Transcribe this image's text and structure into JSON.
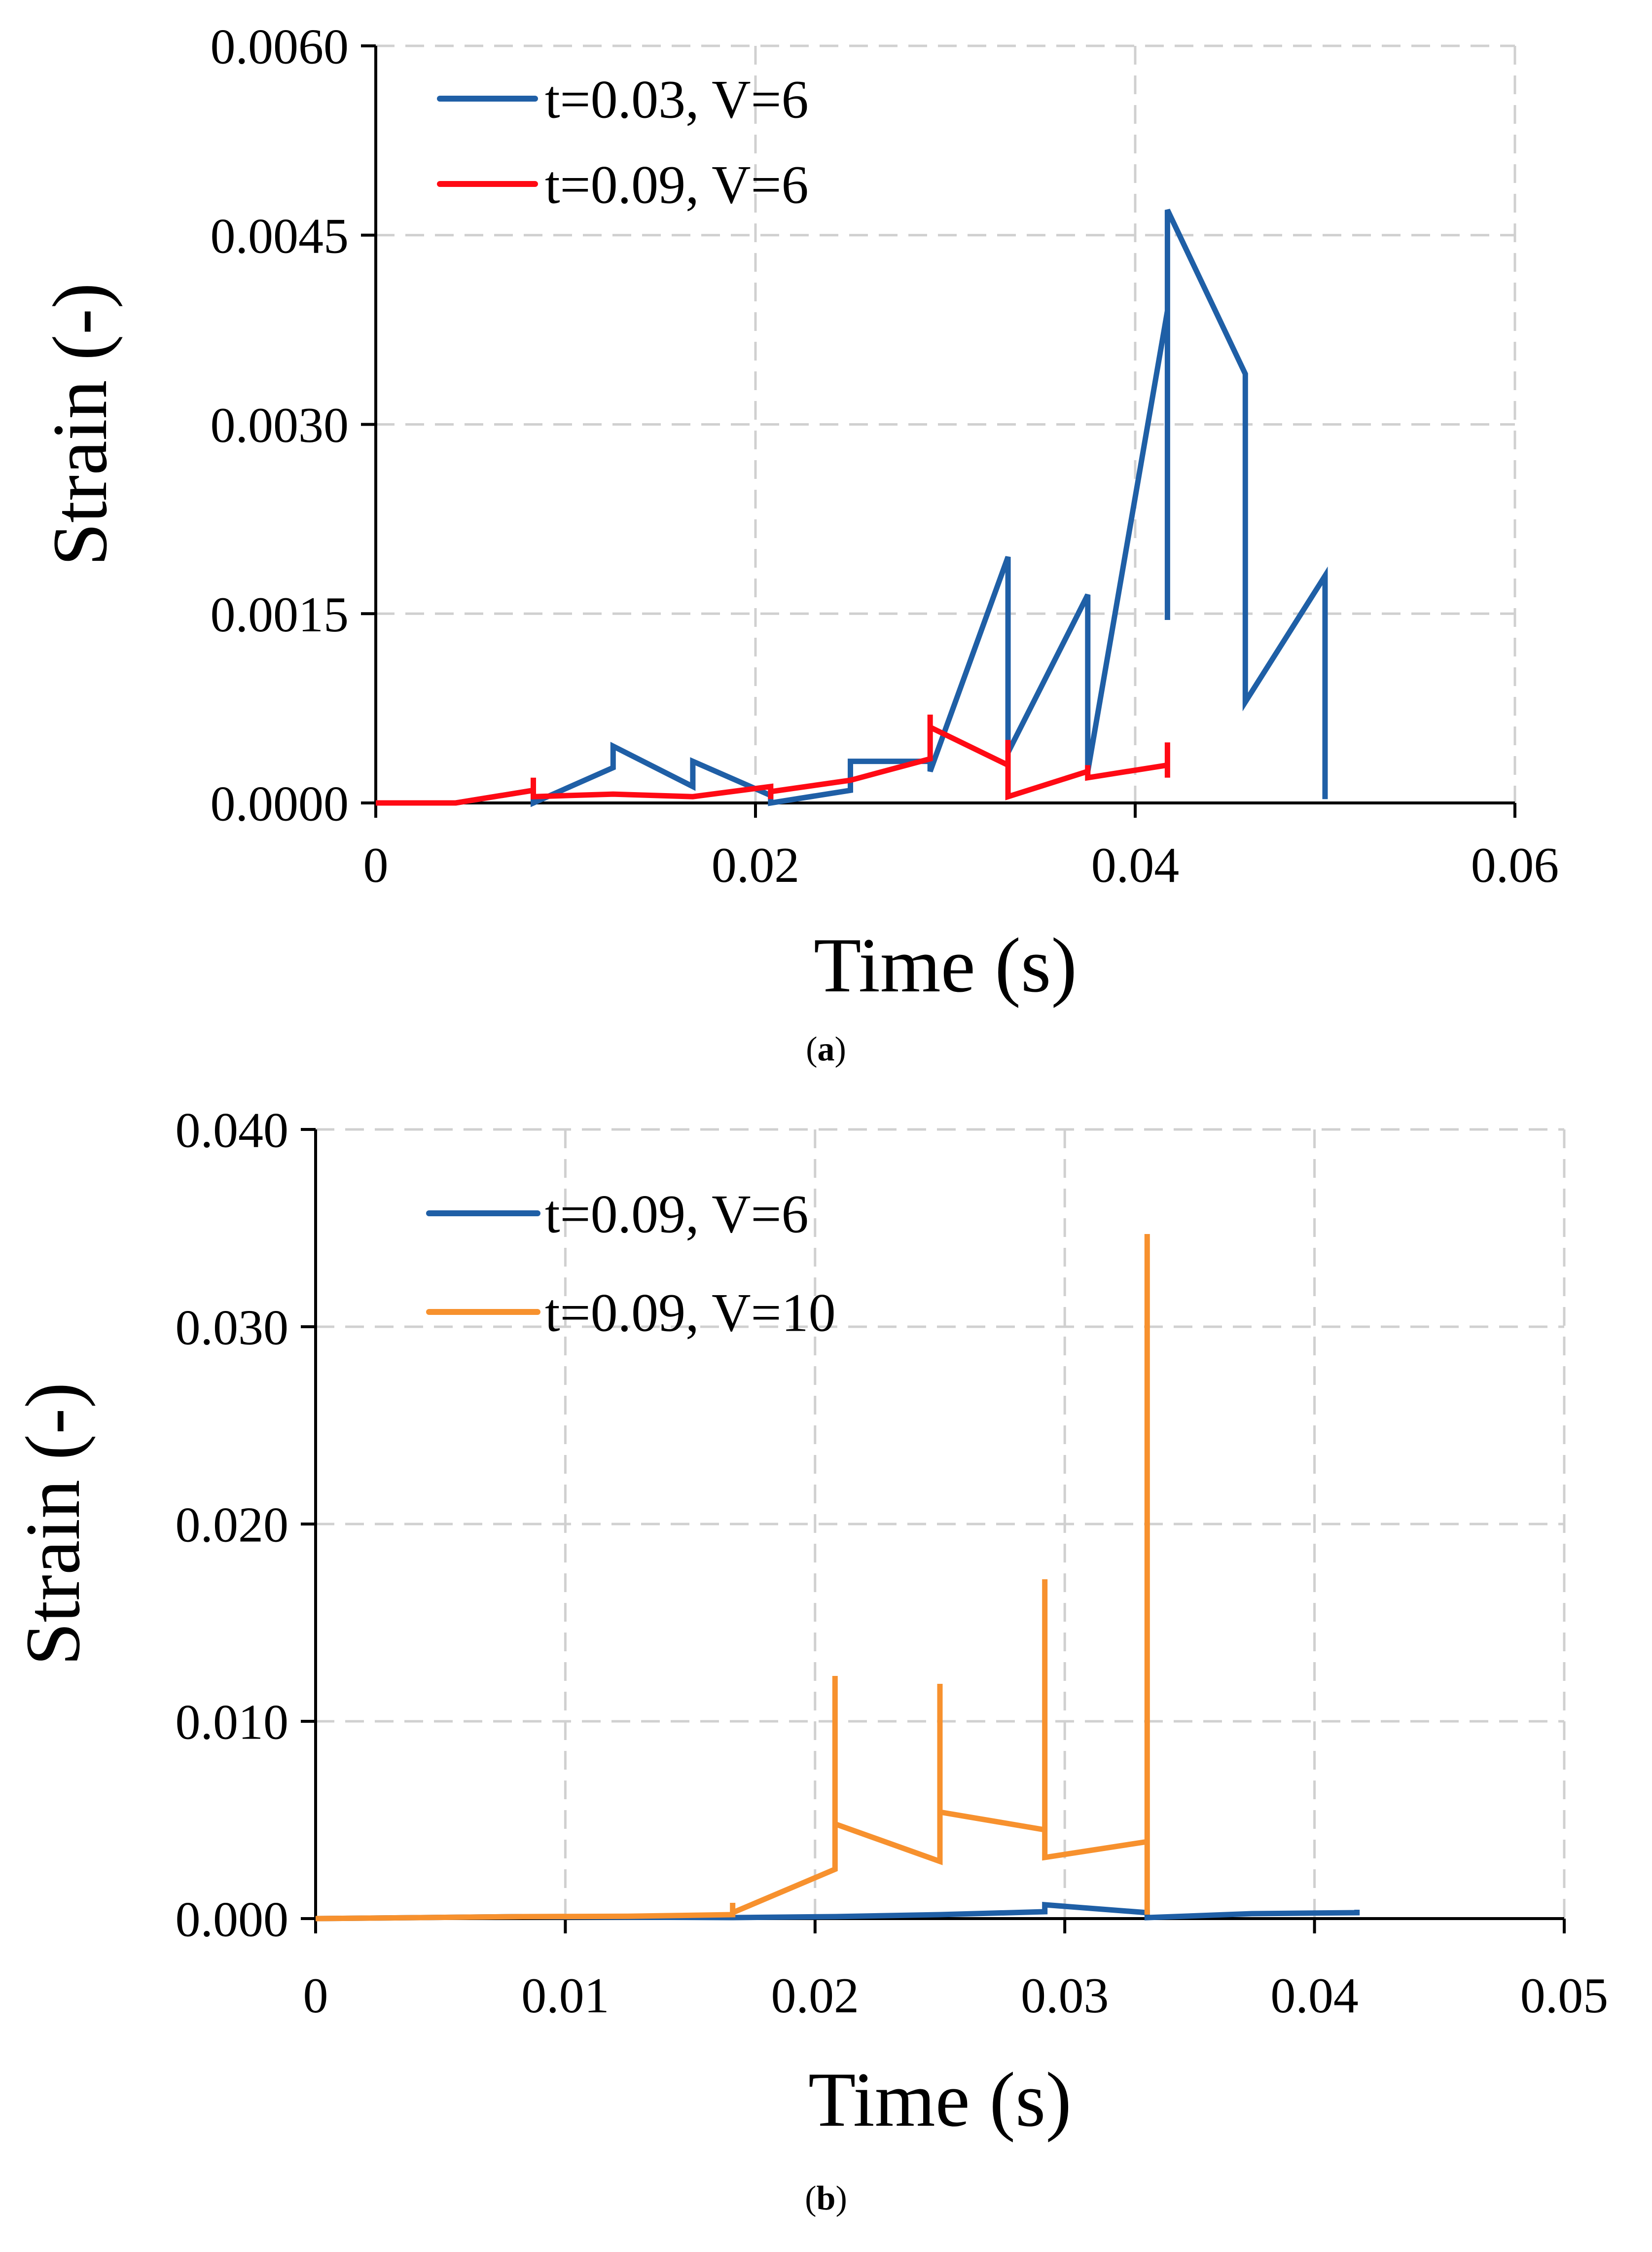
{
  "colors": {
    "blue": "#1F5FA6",
    "red": "#FF0A14",
    "orange": "#F7912E",
    "grid": "#D0D0D0",
    "axis": "#000000"
  },
  "chart_data": [
    {
      "type": "line",
      "panel_label": "a",
      "xlabel": "Time (s)",
      "ylabel": "Strain (-)",
      "xlim": [
        0,
        0.06
      ],
      "ylim": [
        0,
        0.006
      ],
      "xticks": [
        0,
        0.02,
        0.04,
        0.06
      ],
      "xtick_labels": [
        "0",
        "0.02",
        "0.04",
        "0.06"
      ],
      "yticks": [
        0,
        0.0015,
        0.003,
        0.0045,
        0.006
      ],
      "ytick_labels": [
        "0.0000",
        "0.0015",
        "0.0030",
        "0.0045",
        "0.0060"
      ],
      "grid": true,
      "legend_position": "top-left",
      "series": [
        {
          "name": "t=0.03, V=6",
          "color": "#1F5FA6",
          "x": [
            0,
            0.0042,
            0.0083,
            0.0083,
            0.0125,
            0.0125,
            0.0167,
            0.0167,
            0.0208,
            0.0208,
            0.025,
            0.025,
            0.0292,
            0.0292,
            0.0333,
            0.0333,
            0.0375,
            0.0375,
            0.0417,
            0.0417,
            0.0417,
            0.0458,
            0.0458,
            0.05,
            0.05
          ],
          "y": [
            0,
            0,
            0.0001,
            0,
            0.00028,
            0.00045,
            0.00013,
            0.00033,
            6e-05,
            0,
            0.0001,
            0.00033,
            0.00033,
            0.00025,
            0.00195,
            0.0004,
            0.00165,
            0.00025,
            0.0039,
            0.00145,
            0.0047,
            0.0034,
            0.0008,
            0.0018,
            3e-05
          ]
        },
        {
          "name": "t=0.09, V=6",
          "color": "#FF0A14",
          "x": [
            0,
            0.0042,
            0.0083,
            0.0083,
            0.0083,
            0.0125,
            0.0167,
            0.0208,
            0.0208,
            0.0208,
            0.025,
            0.0292,
            0.0292,
            0.0292,
            0.0333,
            0.0333,
            0.0333,
            0.0375,
            0.0375,
            0.0375,
            0.0417,
            0.0417,
            0.0417
          ],
          "y": [
            0,
            0,
            0.0001,
            0.0002,
            5e-05,
            7e-05,
            5e-05,
            0.00013,
            3e-05,
            9e-05,
            0.00018,
            0.00035,
            0.0007,
            0.0006,
            0.0003,
            0.0005,
            5e-05,
            0.00025,
            0.0003,
            0.0002,
            0.0003,
            0.00048,
            0.0002
          ]
        }
      ]
    },
    {
      "type": "line",
      "panel_label": "b",
      "xlabel": "Time (s)",
      "ylabel": "Strain (-)",
      "xlim": [
        0,
        0.05
      ],
      "ylim": [
        0,
        0.04
      ],
      "xticks": [
        0,
        0.01,
        0.02,
        0.03,
        0.04,
        0.05
      ],
      "xtick_labels": [
        "0",
        "0.01",
        "0.02",
        "0.03",
        "0.04",
        "0.05"
      ],
      "yticks": [
        0,
        0.01,
        0.02,
        0.03,
        0.04
      ],
      "ytick_labels": [
        "0.000",
        "0.010",
        "0.020",
        "0.030",
        "0.040"
      ],
      "grid": true,
      "legend_position": "top-left",
      "series": [
        {
          "name": "t=0.09, V=6",
          "color": "#1F5FA6",
          "x": [
            0,
            0.0042,
            0.0083,
            0.0125,
            0.0167,
            0.0208,
            0.025,
            0.0292,
            0.0292,
            0.0333,
            0.0333,
            0.0375,
            0.0417,
            0.0417
          ],
          "y": [
            0,
            5e-05,
            0.0001,
            7e-05,
            5e-05,
            0.0001,
            0.0002,
            0.00035,
            0.0007,
            0.0003,
            5e-05,
            0.00025,
            0.0003,
            0.00045
          ]
        },
        {
          "name": "t=0.09, V=10",
          "color": "#F7912E",
          "x": [
            0,
            0.0042,
            0.0083,
            0.0125,
            0.0167,
            0.0167,
            0.0167,
            0.0208,
            0.0208,
            0.0208,
            0.025,
            0.025,
            0.025,
            0.0292,
            0.0292,
            0.0292,
            0.0333,
            0.0333,
            0.0333
          ],
          "y": [
            0,
            5e-05,
            0.0001,
            0.00012,
            0.0002,
            0.0008,
            0.0003,
            0.0025,
            0.0123,
            0.0048,
            0.0029,
            0.0119,
            0.0054,
            0.0045,
            0.0172,
            0.0031,
            0.0039,
            0.0347,
            0.0002
          ]
        }
      ]
    }
  ]
}
